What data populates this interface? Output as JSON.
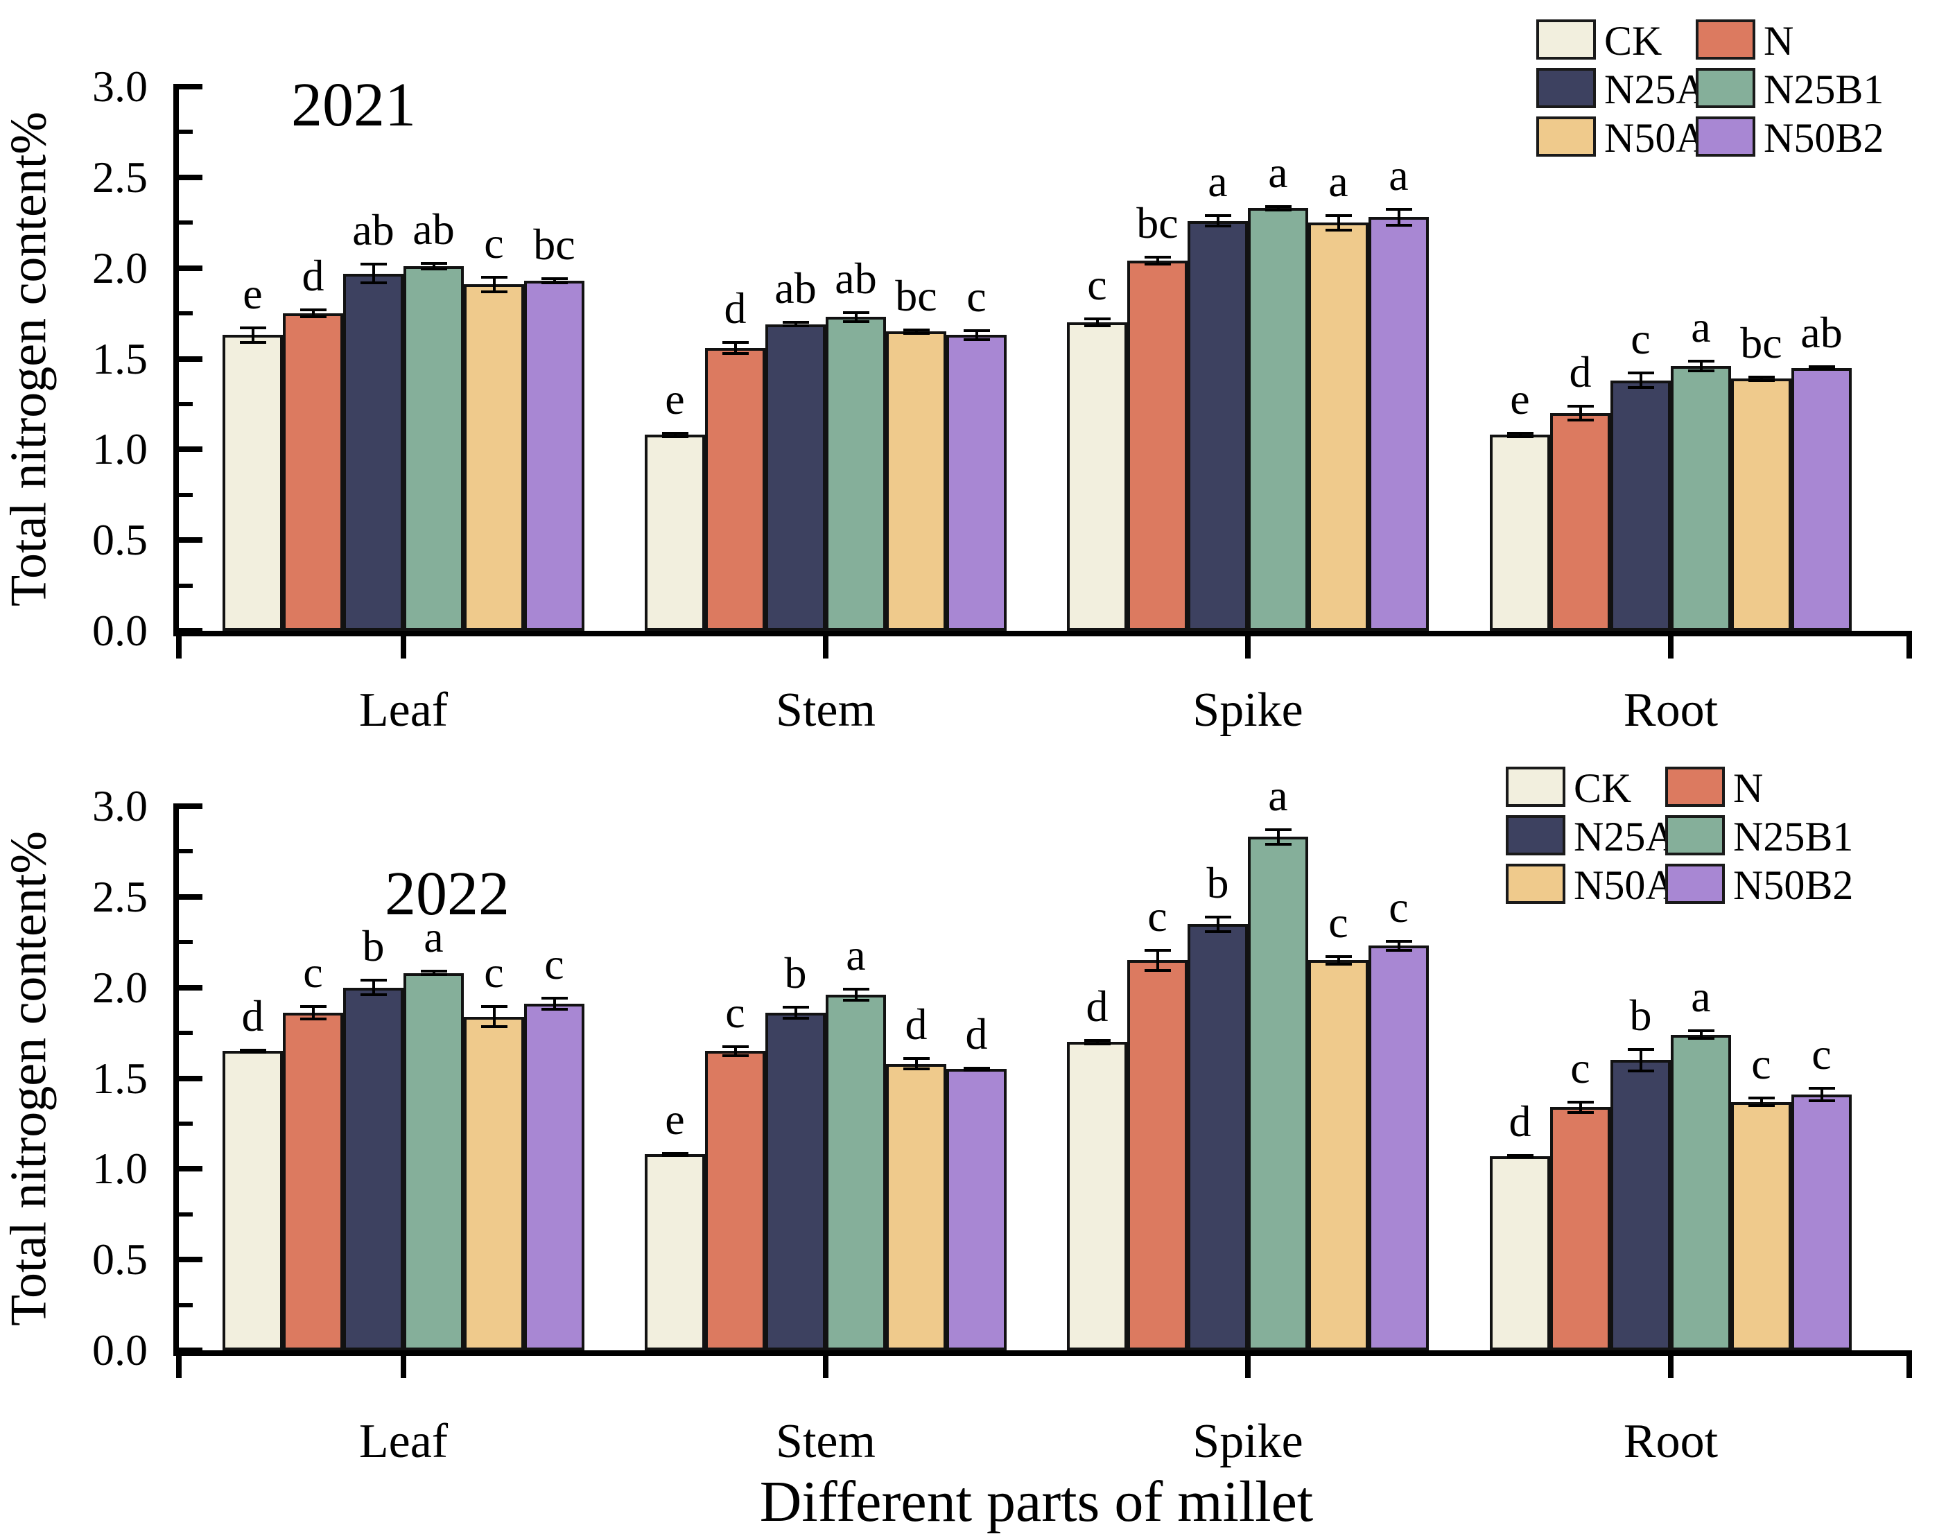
{
  "figure": {
    "xlabel": "Different parts of millet",
    "ylabel": "Total nitrogen content%"
  },
  "legend": {
    "entries": [
      {
        "label": "CK",
        "color": "#F2EFDE"
      },
      {
        "label": "N",
        "color": "#DC7A60"
      },
      {
        "label": "N25A1",
        "color": "#3D4160"
      },
      {
        "label": "N25B1",
        "color": "#85AF9A"
      },
      {
        "label": "N50A2",
        "color": "#EFCA8C"
      },
      {
        "label": "N50B2",
        "color": "#A887D3"
      }
    ]
  },
  "chart_data": [
    {
      "type": "bar",
      "title": "2021",
      "ylabel": "Total nitrogen content%",
      "xlabel": "",
      "ylim": [
        0.0,
        3.0
      ],
      "yticks": [
        0.0,
        0.5,
        1.0,
        1.5,
        2.0,
        2.5,
        3.0
      ],
      "minor_tick_step": 0.25,
      "grid": false,
      "legend_position": "top-right",
      "categories": [
        "Leaf",
        "Stem",
        "Spike",
        "Root"
      ],
      "series": [
        {
          "name": "CK",
          "color": "#F2EFDE",
          "values": [
            1.63,
            1.08,
            1.7,
            1.08
          ],
          "errors": [
            0.04,
            0.01,
            0.02,
            0.01
          ],
          "letters": [
            "e",
            "e",
            "c",
            "e"
          ]
        },
        {
          "name": "N",
          "color": "#DC7A60",
          "values": [
            1.75,
            1.56,
            2.04,
            1.2
          ],
          "errors": [
            0.02,
            0.03,
            0.02,
            0.04
          ],
          "letters": [
            "d",
            "d",
            "bc",
            "d"
          ]
        },
        {
          "name": "N25A1",
          "color": "#3D4160",
          "values": [
            1.97,
            1.69,
            2.26,
            1.38
          ],
          "errors": [
            0.05,
            0.01,
            0.03,
            0.04
          ],
          "letters": [
            "ab",
            "ab",
            "a",
            "c"
          ]
        },
        {
          "name": "N25B1",
          "color": "#85AF9A",
          "values": [
            2.01,
            1.73,
            2.33,
            1.46
          ],
          "errors": [
            0.015,
            0.025,
            0.01,
            0.025
          ],
          "letters": [
            "ab",
            "ab",
            "a",
            "a"
          ]
        },
        {
          "name": "N50A2",
          "color": "#EFCA8C",
          "values": [
            1.91,
            1.65,
            2.25,
            1.39
          ],
          "errors": [
            0.04,
            0.01,
            0.04,
            0.01
          ],
          "letters": [
            "c",
            "bc",
            "a",
            "bc"
          ]
        },
        {
          "name": "N50B2",
          "color": "#A887D3",
          "values": [
            1.93,
            1.63,
            2.28,
            1.45
          ],
          "errors": [
            0.01,
            0.025,
            0.045,
            0.005
          ],
          "letters": [
            "bc",
            "c",
            "a",
            "ab"
          ]
        }
      ]
    },
    {
      "type": "bar",
      "title": "2022",
      "ylabel": "Total nitrogen content%",
      "xlabel": "Different parts of millet",
      "ylim": [
        0.0,
        3.0
      ],
      "yticks": [
        0.0,
        0.5,
        1.0,
        1.5,
        2.0,
        2.5,
        3.0
      ],
      "minor_tick_step": 0.25,
      "grid": false,
      "legend_position": "top-right",
      "categories": [
        "Leaf",
        "Stem",
        "Spike",
        "Root"
      ],
      "series": [
        {
          "name": "CK",
          "color": "#F2EFDE",
          "values": [
            1.65,
            1.08,
            1.7,
            1.07
          ],
          "errors": [
            0.005,
            0.005,
            0.01,
            0.005
          ],
          "letters": [
            "d",
            "e",
            "d",
            "d"
          ]
        },
        {
          "name": "N",
          "color": "#DC7A60",
          "values": [
            1.86,
            1.65,
            2.15,
            1.34
          ],
          "errors": [
            0.035,
            0.025,
            0.055,
            0.03
          ],
          "letters": [
            "c",
            "c",
            "c",
            "c"
          ]
        },
        {
          "name": "N25A1",
          "color": "#3D4160",
          "values": [
            2.0,
            1.86,
            2.35,
            1.6
          ],
          "errors": [
            0.04,
            0.03,
            0.04,
            0.06
          ],
          "letters": [
            "b",
            "b",
            "b",
            "b"
          ]
        },
        {
          "name": "N25B1",
          "color": "#85AF9A",
          "values": [
            2.08,
            1.96,
            2.83,
            1.74
          ],
          "errors": [
            0.01,
            0.03,
            0.04,
            0.02
          ],
          "letters": [
            "a",
            "a",
            "a",
            "a"
          ]
        },
        {
          "name": "N50A2",
          "color": "#EFCA8C",
          "values": [
            1.84,
            1.58,
            2.15,
            1.37
          ],
          "errors": [
            0.055,
            0.03,
            0.02,
            0.02
          ],
          "letters": [
            "c",
            "d",
            "c",
            "c"
          ]
        },
        {
          "name": "N50B2",
          "color": "#A887D3",
          "values": [
            1.91,
            1.55,
            2.23,
            1.41
          ],
          "errors": [
            0.03,
            0.005,
            0.025,
            0.035
          ],
          "letters": [
            "c",
            "d",
            "c",
            "c"
          ]
        }
      ]
    }
  ]
}
